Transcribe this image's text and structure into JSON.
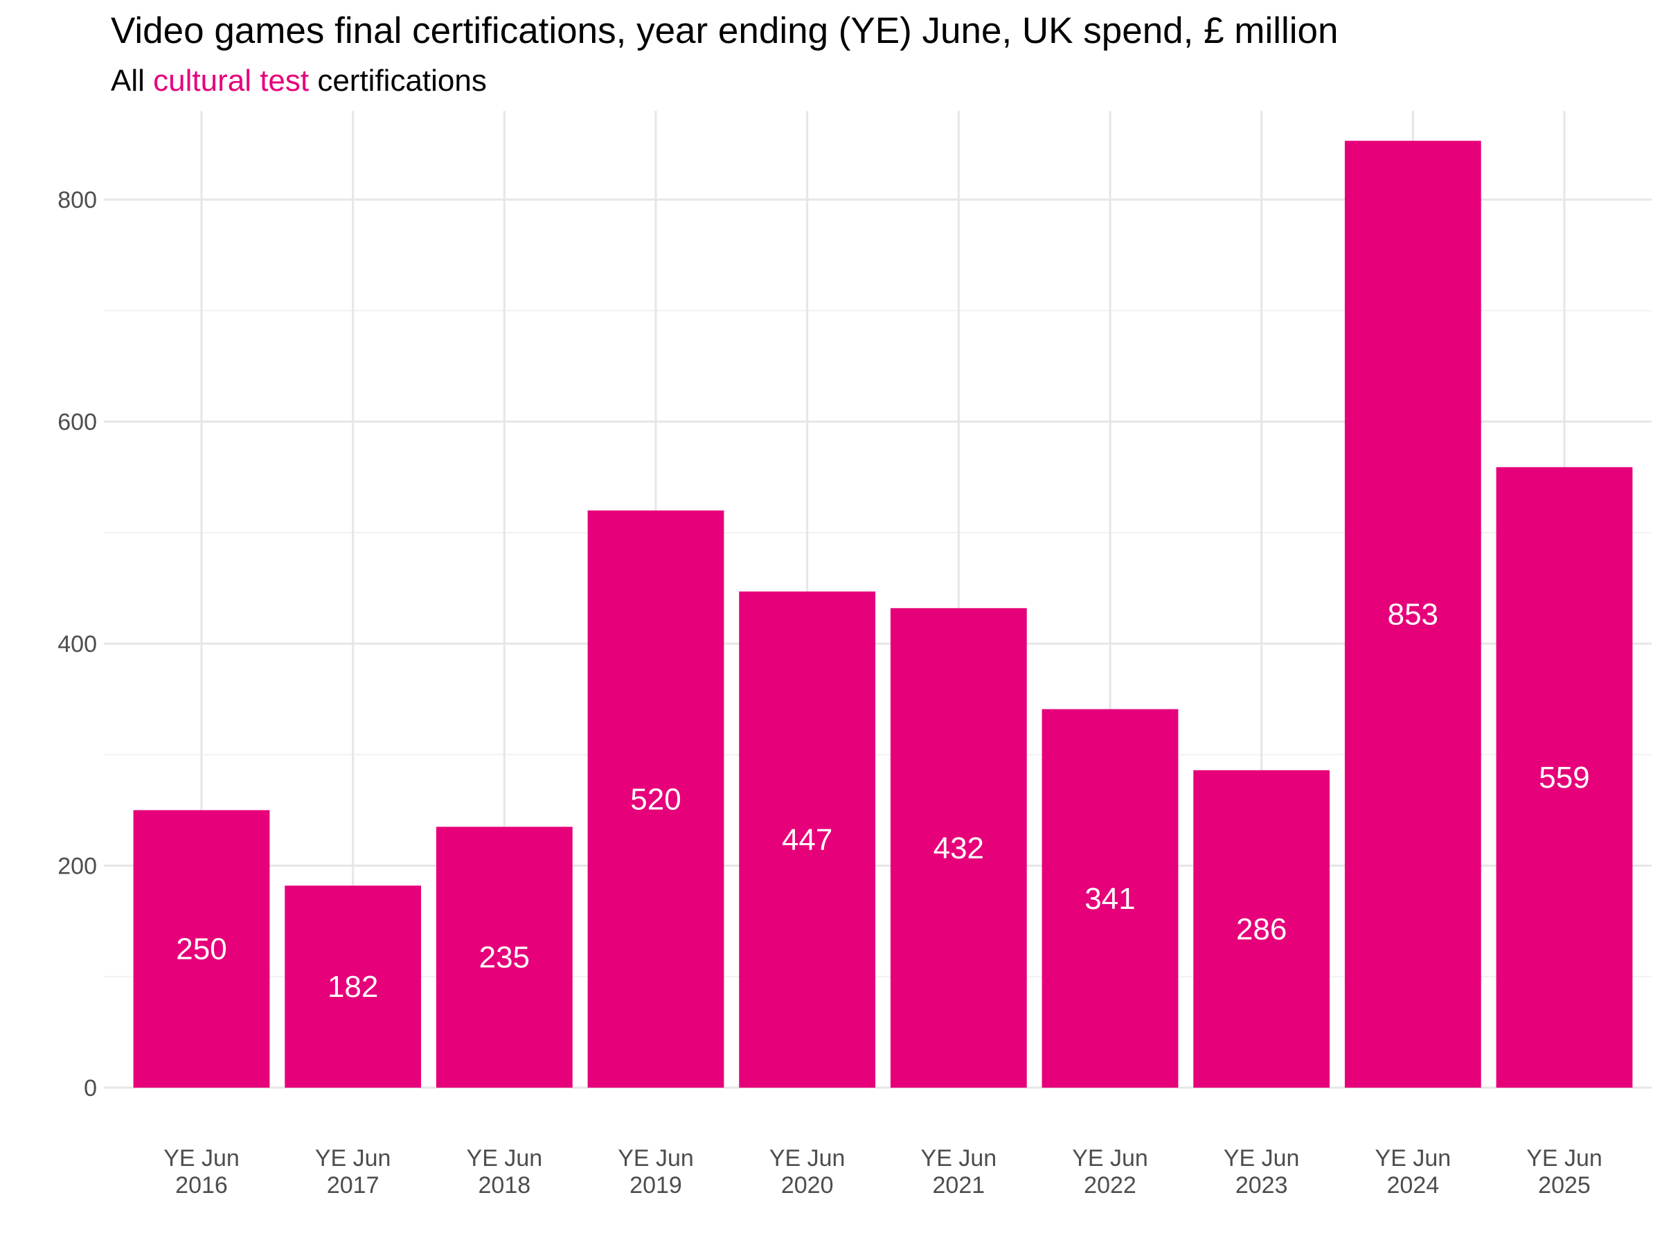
{
  "chart_data": {
    "type": "bar",
    "title": "Video games final certifications, year ending (YE) June, UK spend, £ million",
    "subtitle": {
      "prefix": "All ",
      "highlight": "cultural test",
      "suffix": " certifications"
    },
    "categories": [
      [
        "YE Jun",
        "2016"
      ],
      [
        "YE Jun",
        "2017"
      ],
      [
        "YE Jun",
        "2018"
      ],
      [
        "YE Jun",
        "2019"
      ],
      [
        "YE Jun",
        "2020"
      ],
      [
        "YE Jun",
        "2021"
      ],
      [
        "YE Jun",
        "2022"
      ],
      [
        "YE Jun",
        "2023"
      ],
      [
        "YE Jun",
        "2024"
      ],
      [
        "YE Jun",
        "2025"
      ]
    ],
    "values": [
      250,
      182,
      235,
      520,
      447,
      432,
      341,
      286,
      853,
      559
    ],
    "data_labels": [
      "250",
      "182",
      "235",
      "520",
      "447",
      "432",
      "341",
      "286",
      "853",
      "559"
    ],
    "xlabel": "",
    "ylabel": "",
    "ylim": [
      0,
      880
    ],
    "yticks": [
      0,
      200,
      400,
      600,
      800
    ],
    "ytick_labels": [
      "0",
      "200",
      "400",
      "600",
      "800"
    ],
    "minor_yticks": [
      100,
      300,
      500,
      700
    ],
    "grid": true,
    "legend": "none",
    "colors": {
      "bar": "#e6007a",
      "highlight": "#e6007a",
      "bar_label": "#ffffff",
      "grid": "#e6e6e6"
    }
  }
}
